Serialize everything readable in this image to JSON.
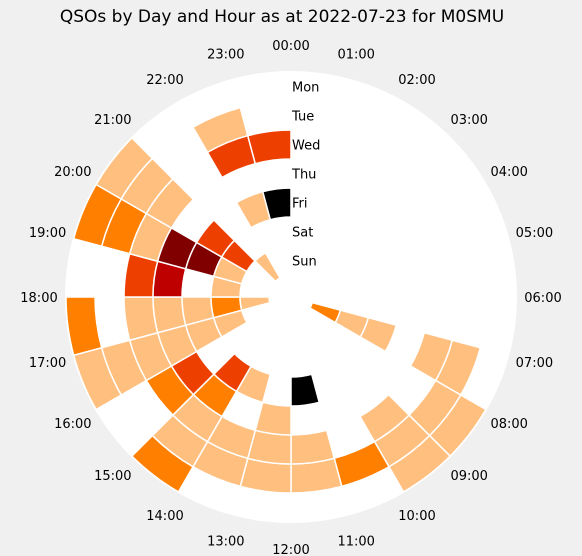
{
  "chart_data": {
    "type": "heatmap",
    "subtype": "polar",
    "title": "QSOs by Day and Hour as at 2022-07-23 for M0SMU",
    "hours": [
      "00:00",
      "01:00",
      "02:00",
      "03:00",
      "04:00",
      "05:00",
      "06:00",
      "07:00",
      "08:00",
      "09:00",
      "10:00",
      "11:00",
      "12:00",
      "13:00",
      "14:00",
      "15:00",
      "16:00",
      "17:00",
      "18:00",
      "19:00",
      "20:00",
      "21:00",
      "22:00",
      "23:00"
    ],
    "days": [
      "Mon",
      "Tue",
      "Wed",
      "Thu",
      "Fri",
      "Sat",
      "Sun"
    ],
    "direction": "clockwise",
    "start": "top",
    "colormap": "gist_heat_r",
    "value_scale": "relative 0-1",
    "values": {
      "Mon": [
        0,
        0,
        0,
        0,
        0,
        0,
        0,
        0,
        0.25,
        0.25,
        0,
        0,
        0,
        0,
        0.5,
        0,
        0.25,
        0.5,
        0,
        0.5,
        0.25,
        0,
        0,
        0
      ],
      "Tue": [
        0,
        0,
        0,
        0,
        0,
        0,
        0,
        0.25,
        0.25,
        0.25,
        0.5,
        0.25,
        0.25,
        0.25,
        0.25,
        0,
        0.25,
        0,
        0,
        0.5,
        0.25,
        0,
        0.25,
        0
      ],
      "Wed": [
        0,
        0,
        0,
        0,
        0,
        0,
        0,
        0.25,
        0,
        0.25,
        0,
        0.25,
        0.25,
        0.25,
        0.25,
        0.5,
        0.25,
        0.25,
        0.62,
        0.25,
        0.25,
        0,
        0.62,
        0.62
      ],
      "Thu": [
        0,
        0,
        0,
        0,
        0,
        0,
        0,
        0,
        0,
        0,
        0,
        0,
        0.25,
        0,
        0.5,
        0.62,
        0.25,
        0.25,
        0.78,
        0.88,
        0,
        0,
        0,
        0
      ],
      "Fri": [
        0,
        0,
        0,
        0,
        0,
        0,
        0,
        0.25,
        0,
        0,
        0,
        1.0,
        0,
        0.25,
        0.62,
        0,
        0.25,
        0.25,
        0,
        0.88,
        0.62,
        0,
        0.25,
        1.0
      ],
      "Sat": [
        0,
        0,
        0,
        0,
        0,
        0,
        0,
        0.25,
        0,
        0,
        0,
        0,
        0,
        0,
        0,
        0,
        0.25,
        0.5,
        0.25,
        0.25,
        0.62,
        0,
        0,
        0
      ],
      "Sun": [
        0,
        0,
        0,
        0,
        0,
        0,
        0,
        0.5,
        0,
        0,
        0,
        0,
        0,
        0,
        0,
        0,
        0,
        0.25,
        0,
        0,
        0,
        0.25,
        0,
        0
      ]
    }
  }
}
